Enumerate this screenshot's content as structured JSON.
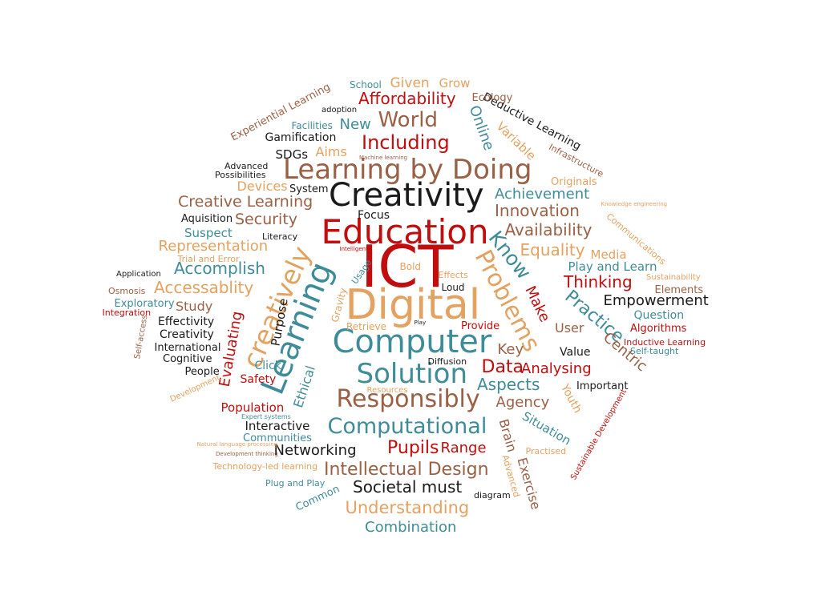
{
  "palette": {
    "brown": "#9a6046",
    "tan": "#e3a260",
    "teal": "#3f8c99",
    "red": "#c10d0d",
    "black": "#1a1a1a"
  },
  "words": [
    {
      "text": "ICT",
      "color": "red"
    },
    {
      "text": "Digital",
      "color": "tan"
    },
    {
      "text": "Education",
      "color": "red"
    },
    {
      "text": "Creativity",
      "color": "black"
    },
    {
      "text": "Learning by Doing",
      "color": "brown"
    },
    {
      "text": "Computer",
      "color": "teal"
    },
    {
      "text": "Learning",
      "color": "teal"
    },
    {
      "text": "Solution",
      "color": "teal"
    },
    {
      "text": "Responsibly",
      "color": "brown"
    },
    {
      "text": "Computational",
      "color": "teal"
    },
    {
      "text": "Problems",
      "color": "tan"
    },
    {
      "text": "creatively",
      "color": "tan"
    },
    {
      "text": "Know",
      "color": "teal"
    },
    {
      "text": "Practice",
      "color": "teal"
    },
    {
      "text": "World",
      "color": "brown"
    },
    {
      "text": "Including",
      "color": "red"
    },
    {
      "text": "Affordability",
      "color": "red"
    },
    {
      "text": "Pupils",
      "color": "red"
    },
    {
      "text": "Intellectual Design",
      "color": "brown"
    },
    {
      "text": "Understanding",
      "color": "tan"
    },
    {
      "text": "Societal must",
      "color": "black"
    },
    {
      "text": "Combination",
      "color": "teal"
    },
    {
      "text": "Data",
      "color": "red"
    },
    {
      "text": "Aspects",
      "color": "teal"
    },
    {
      "text": "Innovation",
      "color": "brown"
    },
    {
      "text": "Availability",
      "color": "brown"
    },
    {
      "text": "Achievement",
      "color": "teal"
    },
    {
      "text": "Equality",
      "color": "tan"
    },
    {
      "text": "Thinking",
      "color": "red"
    },
    {
      "text": "Empowerment",
      "color": "black"
    },
    {
      "text": "Creative Learning",
      "color": "brown"
    },
    {
      "text": "Security",
      "color": "brown"
    },
    {
      "text": "Representation",
      "color": "tan"
    },
    {
      "text": "Accomplish",
      "color": "teal"
    },
    {
      "text": "Accessablity",
      "color": "tan"
    },
    {
      "text": "Analysing",
      "color": "red"
    },
    {
      "text": "Agency",
      "color": "brown"
    },
    {
      "text": "Networking",
      "color": "black"
    },
    {
      "text": "Range",
      "color": "red"
    },
    {
      "text": "Evaluating",
      "color": "red"
    },
    {
      "text": "Ethical",
      "color": "teal"
    },
    {
      "text": "User",
      "color": "brown"
    },
    {
      "text": "Centric",
      "color": "brown"
    },
    {
      "text": "Make",
      "color": "red"
    },
    {
      "text": "Key",
      "color": "brown"
    },
    {
      "text": "Brain",
      "color": "brown"
    },
    {
      "text": "Exercise",
      "color": "brown"
    },
    {
      "text": "Youth",
      "color": "tan"
    },
    {
      "text": "Situation",
      "color": "teal"
    },
    {
      "text": "Online",
      "color": "teal"
    },
    {
      "text": "Variable",
      "color": "tan"
    },
    {
      "text": "New",
      "color": "teal"
    },
    {
      "text": "Given",
      "color": "tan"
    },
    {
      "text": "Grow",
      "color": "tan"
    },
    {
      "text": "Aims",
      "color": "tan"
    },
    {
      "text": "SDGs",
      "color": "black"
    },
    {
      "text": "Gamification",
      "color": "black"
    },
    {
      "text": "Devices",
      "color": "tan"
    },
    {
      "text": "System",
      "color": "black"
    },
    {
      "text": "Focus",
      "color": "black"
    },
    {
      "text": "Suspect",
      "color": "teal"
    },
    {
      "text": "Aquisition",
      "color": "black"
    },
    {
      "text": "Study",
      "color": "brown"
    },
    {
      "text": "Effectivity",
      "color": "black"
    },
    {
      "text": "Creativity",
      "color": "black"
    },
    {
      "text": "Exploratory",
      "color": "teal"
    },
    {
      "text": "International",
      "color": "black"
    },
    {
      "text": "Cognitive",
      "color": "black"
    },
    {
      "text": "People",
      "color": "black"
    },
    {
      "text": "Click",
      "color": "teal"
    },
    {
      "text": "Safety",
      "color": "red"
    },
    {
      "text": "Population",
      "color": "red"
    },
    {
      "text": "Interactive",
      "color": "black"
    },
    {
      "text": "Communities",
      "color": "teal"
    },
    {
      "text": "Purpose",
      "color": "black"
    },
    {
      "text": "Gravity",
      "color": "tan"
    },
    {
      "text": "Usage",
      "color": "teal"
    },
    {
      "text": "Bold",
      "color": "tan"
    },
    {
      "text": "Effects",
      "color": "tan"
    },
    {
      "text": "Loud",
      "color": "black"
    },
    {
      "text": "Retrieve",
      "color": "tan"
    },
    {
      "text": "Provide",
      "color": "red"
    },
    {
      "text": "Diffusion",
      "color": "black"
    },
    {
      "text": "Resources",
      "color": "tan"
    },
    {
      "text": "Value",
      "color": "black"
    },
    {
      "text": "Important",
      "color": "black"
    },
    {
      "text": "Question",
      "color": "teal"
    },
    {
      "text": "Elements",
      "color": "brown"
    },
    {
      "text": "Algorithms",
      "color": "red"
    },
    {
      "text": "Play and Learn",
      "color": "teal"
    },
    {
      "text": "Media",
      "color": "tan"
    },
    {
      "text": "Originals",
      "color": "tan"
    },
    {
      "text": "Communications",
      "color": "tan"
    },
    {
      "text": "Inductive Learning",
      "color": "red"
    },
    {
      "text": "Self-taught",
      "color": "teal"
    },
    {
      "text": "Sustainability",
      "color": "tan"
    },
    {
      "text": "Sustainable Development",
      "color": "red"
    },
    {
      "text": "Infrastructure",
      "color": "brown"
    },
    {
      "text": "Deductive Learning",
      "color": "black"
    },
    {
      "text": "Ecology",
      "color": "brown"
    },
    {
      "text": "School",
      "color": "teal"
    },
    {
      "text": "Experiential Learning",
      "color": "brown"
    },
    {
      "text": "adoption",
      "color": "black"
    },
    {
      "text": "Facilities",
      "color": "teal"
    },
    {
      "text": "Advanced",
      "color": "black"
    },
    {
      "text": "Possibilities",
      "color": "black"
    },
    {
      "text": "Machine learning",
      "color": "brown"
    },
    {
      "text": "Knowledge engineering",
      "color": "tan"
    },
    {
      "text": "Literacy",
      "color": "black"
    },
    {
      "text": "Intelligent",
      "color": "red"
    },
    {
      "text": "Trial and Error",
      "color": "tan"
    },
    {
      "text": "Application",
      "color": "black"
    },
    {
      "text": "Osmosis",
      "color": "brown"
    },
    {
      "text": "Integration",
      "color": "red"
    },
    {
      "text": "Self-access",
      "color": "brown"
    },
    {
      "text": "Development",
      "color": "tan"
    },
    {
      "text": "Expert systems",
      "color": "teal"
    },
    {
      "text": "Natural language processing",
      "color": "tan"
    },
    {
      "text": "Development thinking",
      "color": "brown"
    },
    {
      "text": "Technology-led learning",
      "color": "tan"
    },
    {
      "text": "Plug and Play",
      "color": "teal"
    },
    {
      "text": "Common",
      "color": "teal"
    },
    {
      "text": "diagram",
      "color": "black"
    },
    {
      "text": "Advanced",
      "color": "tan"
    },
    {
      "text": "Practised",
      "color": "tan"
    },
    {
      "text": "Play",
      "color": "black"
    }
  ]
}
